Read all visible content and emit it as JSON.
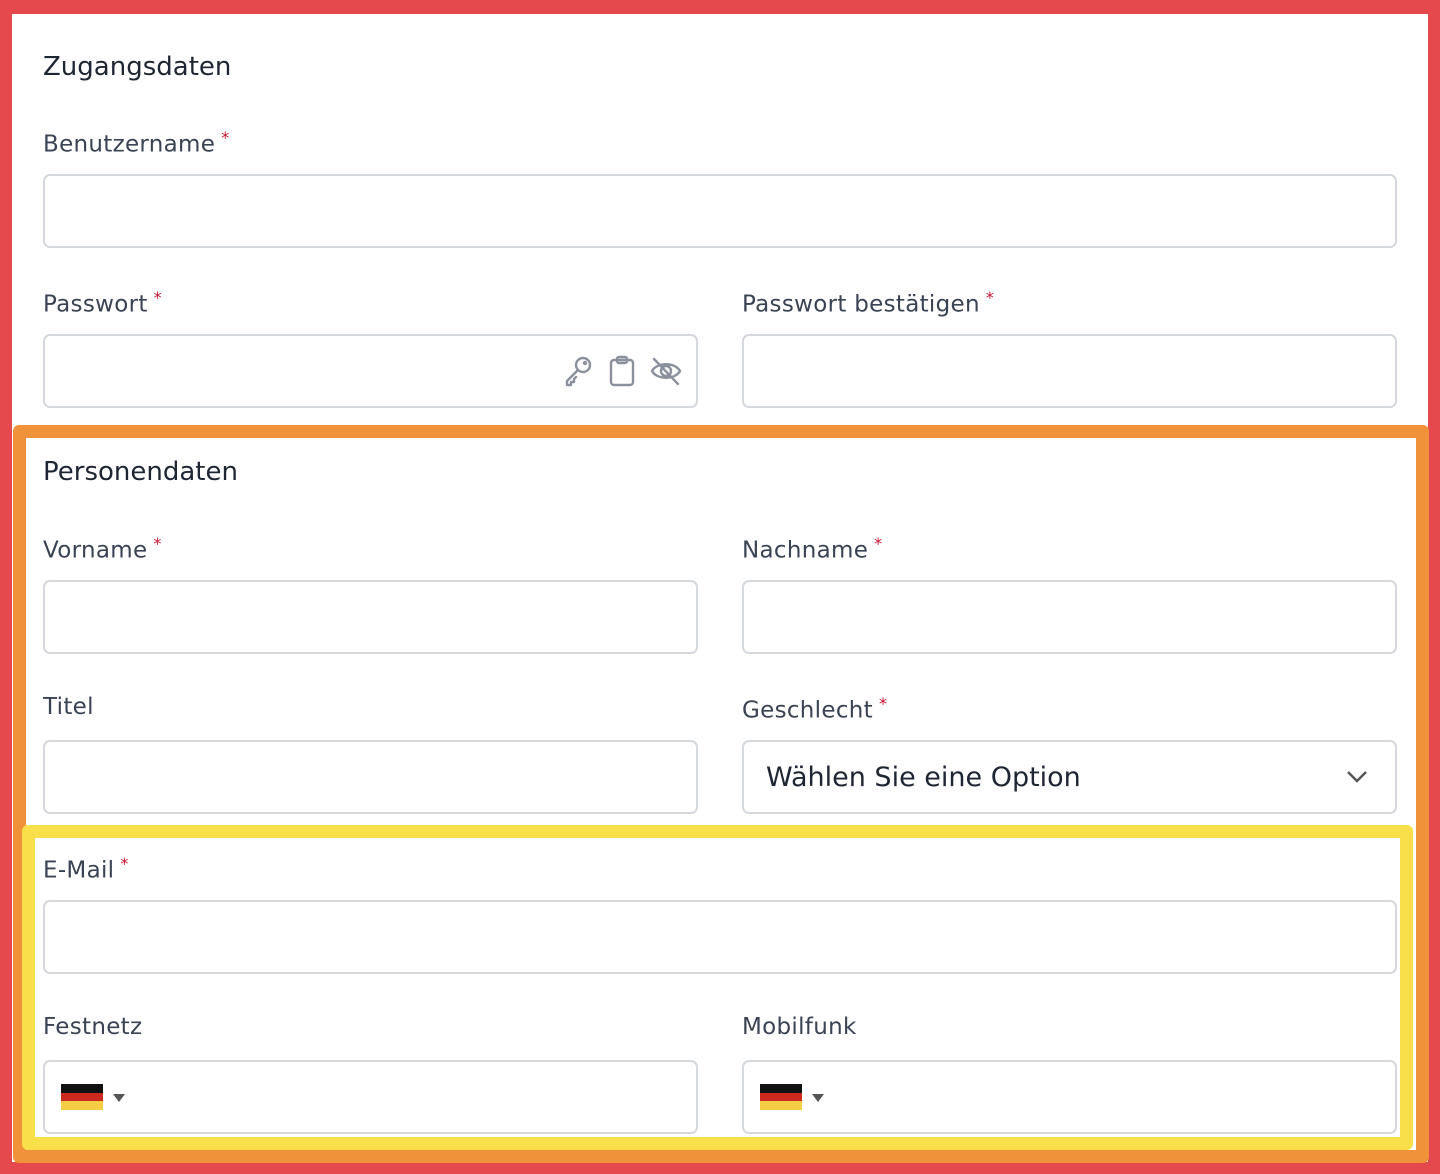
{
  "sections": {
    "access": {
      "title": "Zugangsdaten",
      "username": {
        "label": "Benutzername",
        "required": "*",
        "value": ""
      },
      "password": {
        "label": "Passwort",
        "required": "*",
        "value": "",
        "icons": [
          "key-icon",
          "clipboard-icon",
          "eye-off-icon"
        ]
      },
      "password_confirm": {
        "label": "Passwort bestätigen",
        "required": "*",
        "value": ""
      }
    },
    "person": {
      "title": "Personendaten",
      "first_name": {
        "label": "Vorname",
        "required": "*",
        "value": ""
      },
      "last_name": {
        "label": "Nachname",
        "required": "*",
        "value": ""
      },
      "title_field": {
        "label": "Titel",
        "value": ""
      },
      "gender": {
        "label": "Geschlecht",
        "required": "*",
        "selected": "Wählen Sie eine Option"
      }
    },
    "contact": {
      "email": {
        "label": "E-Mail",
        "required": "*",
        "value": ""
      },
      "landline": {
        "label": "Festnetz",
        "country": "DE",
        "value": ""
      },
      "mobile": {
        "label": "Mobilfunk",
        "country": "DE",
        "value": ""
      }
    }
  },
  "colors": {
    "highlight_outer": "#e5484d",
    "highlight_middle": "#f0923a",
    "highlight_inner": "#f9df4a",
    "required": "#c8102e"
  }
}
